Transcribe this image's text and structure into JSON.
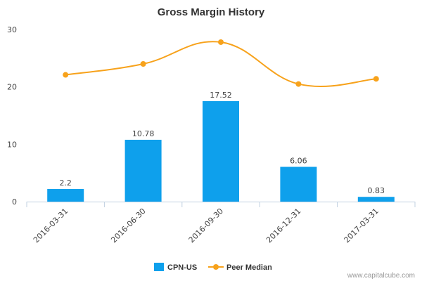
{
  "chart_data": {
    "type": "bar",
    "title": "Gross Margin History",
    "categories": [
      "2016-03-31",
      "2016-06-30",
      "2016-09-30",
      "2016-12-31",
      "2017-03-31"
    ],
    "series": [
      {
        "name": "CPN-US",
        "type": "bar",
        "values": [
          2.2,
          10.78,
          17.52,
          6.06,
          0.83
        ],
        "labels": [
          "2.2",
          "10.78",
          "17.52",
          "6.06",
          "0.83"
        ],
        "color": "#0ea0ec"
      },
      {
        "name": "Peer Median",
        "type": "line",
        "values": [
          22.1,
          24.0,
          27.8,
          20.5,
          21.4
        ],
        "color": "#f7a21b"
      }
    ],
    "ylim": [
      0,
      30
    ],
    "yticks": [
      0,
      10,
      20,
      30
    ],
    "xlabel": "",
    "ylabel": "",
    "grid": false,
    "legend": "bottom-center"
  },
  "credit": "www.capitalcube.com"
}
